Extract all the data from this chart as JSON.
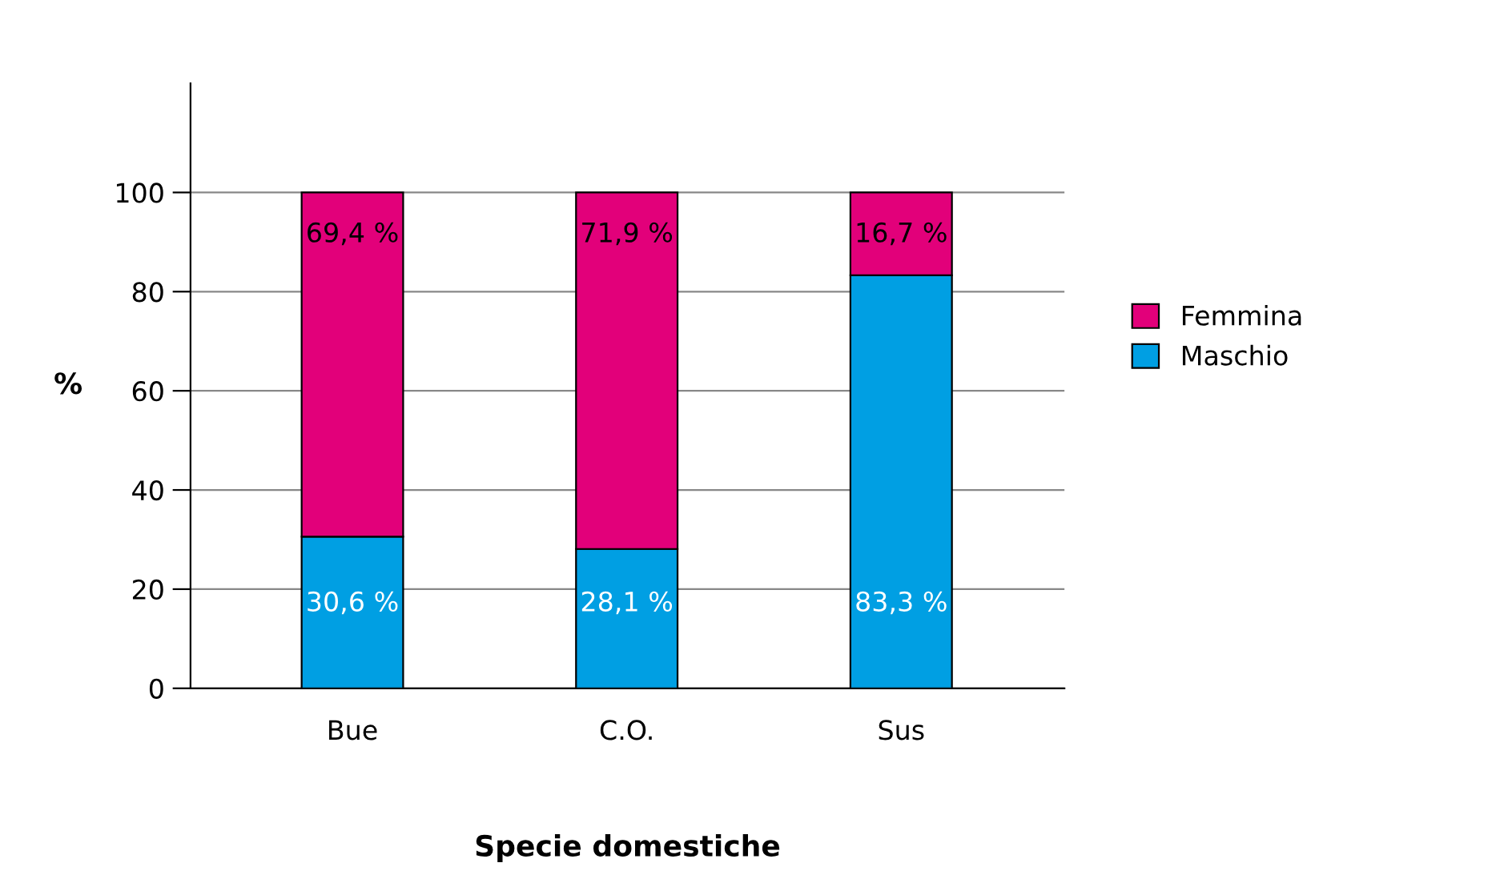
{
  "chart_data": {
    "type": "bar",
    "stacked": true,
    "categories": [
      "Bue",
      "C.O.",
      "Sus"
    ],
    "series": [
      {
        "name": "Maschio",
        "color": "#009fe3",
        "values": [
          30.6,
          28.1,
          83.3
        ],
        "value_labels": [
          "30,6 %",
          "28,1 %",
          "83,3 %"
        ]
      },
      {
        "name": "Femmina",
        "color": "#e2007a",
        "values": [
          69.4,
          71.9,
          16.7
        ],
        "value_labels": [
          "69,4 %",
          "71,9 %",
          "16,7 %"
        ]
      }
    ],
    "xlabel": "Specie domestiche",
    "ylabel": "%",
    "ylim": [
      0,
      122
    ],
    "yticks": [
      0,
      20,
      40,
      60,
      80,
      100
    ],
    "grid": "y",
    "legend": "right"
  }
}
